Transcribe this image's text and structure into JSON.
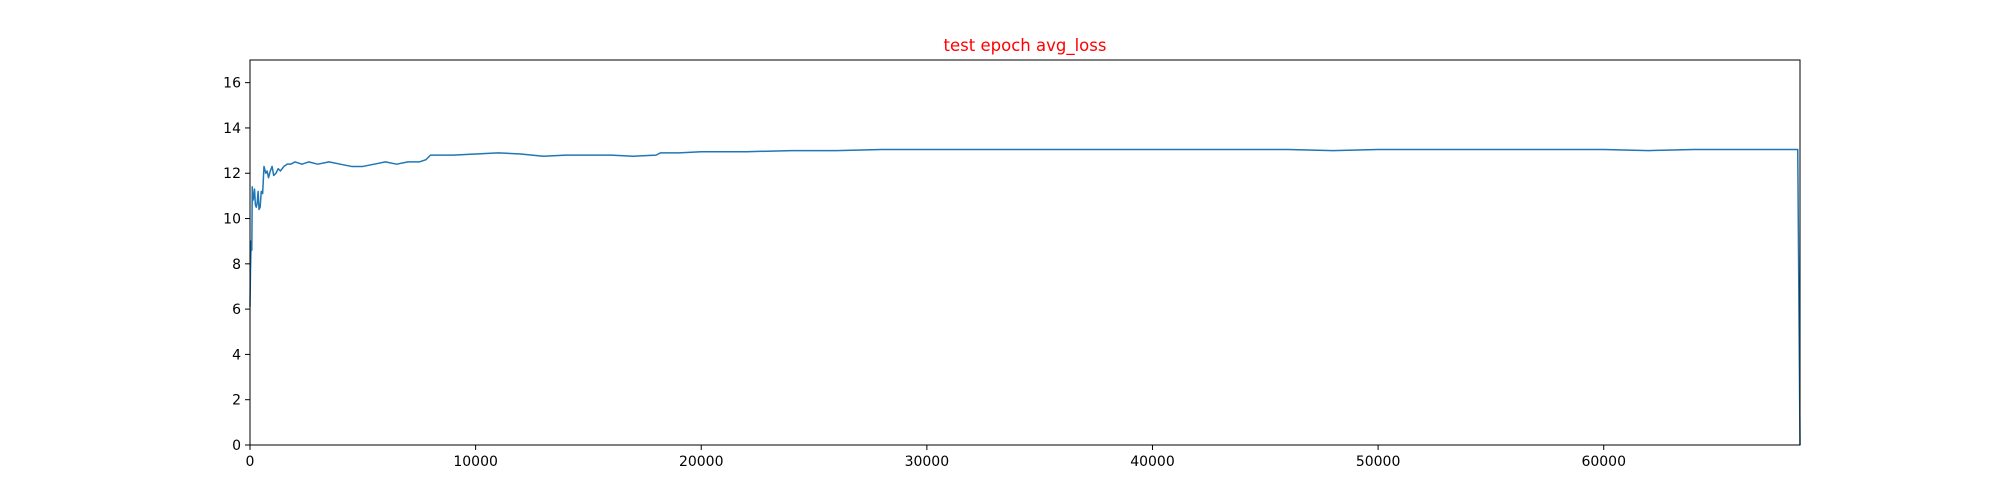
{
  "chart_data": {
    "type": "line",
    "title": "test epoch avg_loss",
    "title_color": "#ff0000",
    "xlabel": "",
    "ylabel": "",
    "xlim": [
      0,
      68700
    ],
    "ylim": [
      0,
      17
    ],
    "x_ticks": [
      0,
      10000,
      20000,
      30000,
      40000,
      50000,
      60000
    ],
    "x_tick_labels": [
      "0",
      "10000",
      "20000",
      "30000",
      "40000",
      "50000",
      "60000"
    ],
    "y_ticks": [
      0,
      2,
      4,
      6,
      8,
      10,
      12,
      14,
      16
    ],
    "y_tick_labels": [
      "0",
      "2",
      "4",
      "6",
      "8",
      "10",
      "12",
      "14",
      "16"
    ],
    "grid": false,
    "legend": "none",
    "series": [
      {
        "color": "#1f77b4",
        "x": [
          0,
          20,
          50,
          80,
          100,
          130,
          160,
          200,
          240,
          280,
          320,
          360,
          400,
          450,
          500,
          560,
          620,
          700,
          760,
          820,
          900,
          980,
          1050,
          1150,
          1250,
          1350,
          1500,
          1650,
          1800,
          2000,
          2300,
          2600,
          3000,
          3500,
          4000,
          4500,
          5000,
          5500,
          6000,
          6500,
          7000,
          7500,
          7800,
          8000,
          9000,
          10000,
          11000,
          12000,
          13000,
          14000,
          15000,
          16000,
          17000,
          18000,
          18200,
          19000,
          20000,
          22000,
          24000,
          26000,
          28000,
          30000,
          32000,
          34000,
          36000,
          38000,
          40000,
          42000,
          44000,
          46000,
          48000,
          50000,
          52000,
          54000,
          56000,
          58000,
          60000,
          62000,
          64000,
          66000,
          68600,
          68700
        ],
        "y": [
          6.1,
          7.6,
          9.0,
          8.6,
          11.4,
          10.8,
          10.9,
          11.3,
          10.6,
          10.5,
          10.7,
          11.2,
          10.4,
          10.5,
          11.2,
          11.1,
          12.3,
          12.0,
          12.1,
          11.8,
          12.1,
          12.3,
          11.9,
          12.0,
          12.2,
          12.1,
          12.3,
          12.4,
          12.4,
          12.5,
          12.4,
          12.5,
          12.4,
          12.5,
          12.4,
          12.3,
          12.3,
          12.4,
          12.5,
          12.4,
          12.5,
          12.5,
          12.6,
          12.8,
          12.8,
          12.85,
          12.9,
          12.85,
          12.75,
          12.8,
          12.8,
          12.8,
          12.75,
          12.8,
          12.9,
          12.9,
          12.95,
          12.95,
          13.0,
          13.0,
          13.05,
          13.05,
          13.05,
          13.05,
          13.05,
          13.05,
          13.05,
          13.05,
          13.05,
          13.05,
          13.0,
          13.05,
          13.05,
          13.05,
          13.05,
          13.05,
          13.05,
          13.0,
          13.05,
          13.05,
          13.05,
          0.0
        ]
      }
    ]
  }
}
